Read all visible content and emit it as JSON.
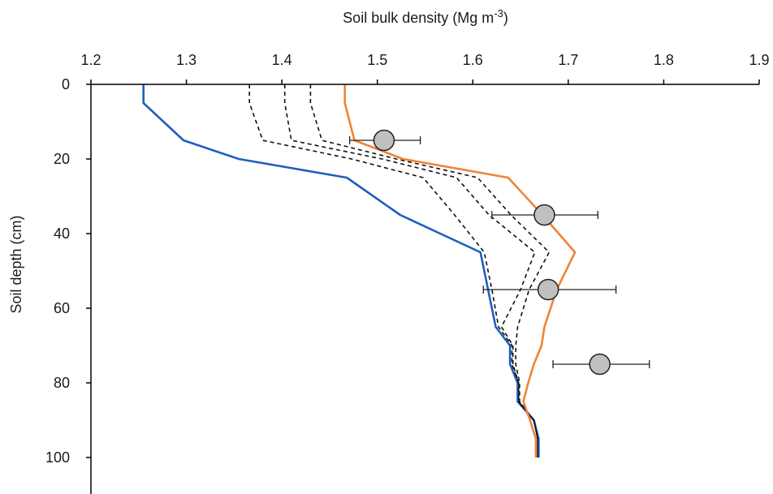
{
  "chart_data": {
    "type": "line",
    "xlabel": "Soil bulk density (Mg m",
    "xlabel_sup": "-3",
    "xlabel_end": ")",
    "ylabel": "Soil depth (cm)",
    "xlim": [
      1.2,
      1.9
    ],
    "ylim": [
      0,
      110
    ],
    "y_inverted": true,
    "x_axis_position": "top",
    "x_ticks": [
      "1.2",
      "1.3",
      "1.4",
      "1.5",
      "1.6",
      "1.7",
      "1.8",
      "1.9"
    ],
    "y_ticks": [
      "0",
      "20",
      "40",
      "60",
      "80",
      "100"
    ],
    "grid": false,
    "legend": "none",
    "series": [
      {
        "style": "solid",
        "color": "#1f5fbf",
        "points": [
          [
            1.255,
            0
          ],
          [
            1.255,
            5
          ],
          [
            1.297,
            15
          ],
          [
            1.355,
            20
          ],
          [
            1.468,
            25
          ],
          [
            1.524,
            35
          ],
          [
            1.608,
            45
          ],
          [
            1.616,
            55
          ],
          [
            1.624,
            65
          ],
          [
            1.639,
            70
          ],
          [
            1.639,
            75
          ],
          [
            1.647,
            80
          ],
          [
            1.647,
            85
          ],
          [
            1.664,
            90
          ],
          [
            1.669,
            95
          ],
          [
            1.669,
            100
          ]
        ]
      },
      {
        "style": "dashed",
        "color": "#111111",
        "points": [
          [
            1.366,
            0
          ],
          [
            1.366,
            5
          ],
          [
            1.38,
            15
          ],
          [
            1.473,
            20
          ],
          [
            1.548,
            25
          ],
          [
            1.581,
            35
          ],
          [
            1.612,
            45
          ],
          [
            1.62,
            55
          ],
          [
            1.627,
            65
          ],
          [
            1.641,
            70
          ],
          [
            1.641,
            75
          ],
          [
            1.648,
            80
          ],
          [
            1.648,
            85
          ],
          [
            1.664,
            90
          ],
          [
            1.668,
            95
          ],
          [
            1.668,
            100
          ]
        ]
      },
      {
        "style": "dashed",
        "color": "#111111",
        "points": [
          [
            1.403,
            0
          ],
          [
            1.403,
            5
          ],
          [
            1.41,
            15
          ],
          [
            1.505,
            20
          ],
          [
            1.583,
            25
          ],
          [
            1.617,
            35
          ],
          [
            1.665,
            45
          ],
          [
            1.65,
            55
          ],
          [
            1.63,
            65
          ],
          [
            1.642,
            70
          ],
          [
            1.642,
            75
          ],
          [
            1.648,
            80
          ],
          [
            1.648,
            85
          ],
          [
            1.664,
            90
          ],
          [
            1.668,
            95
          ],
          [
            1.668,
            100
          ]
        ]
      },
      {
        "style": "dashed",
        "color": "#111111",
        "points": [
          [
            1.43,
            0
          ],
          [
            1.43,
            5
          ],
          [
            1.442,
            15
          ],
          [
            1.52,
            20
          ],
          [
            1.605,
            25
          ],
          [
            1.64,
            35
          ],
          [
            1.68,
            45
          ],
          [
            1.659,
            55
          ],
          [
            1.647,
            65
          ],
          [
            1.645,
            70
          ],
          [
            1.645,
            75
          ],
          [
            1.649,
            80
          ],
          [
            1.649,
            85
          ],
          [
            1.664,
            90
          ],
          [
            1.668,
            95
          ],
          [
            1.668,
            100
          ]
        ]
      },
      {
        "style": "solid",
        "color": "#ef8435",
        "points": [
          [
            1.466,
            0
          ],
          [
            1.466,
            5
          ],
          [
            1.476,
            15
          ],
          [
            1.527,
            20
          ],
          [
            1.637,
            25
          ],
          [
            1.673,
            35
          ],
          [
            1.707,
            45
          ],
          [
            1.688,
            55
          ],
          [
            1.675,
            65
          ],
          [
            1.672,
            70
          ],
          [
            1.664,
            75
          ],
          [
            1.658,
            80
          ],
          [
            1.653,
            85
          ],
          [
            1.66,
            90
          ],
          [
            1.666,
            95
          ],
          [
            1.666,
            100
          ]
        ]
      }
    ],
    "observed": {
      "marker": "circle",
      "fill": "#c0c0c0",
      "stroke": "#222222",
      "points": [
        {
          "x": 1.507,
          "y": 15,
          "xerr_low": 1.471,
          "xerr_high": 1.545
        },
        {
          "x": 1.675,
          "y": 35,
          "xerr_low": 1.62,
          "xerr_high": 1.731
        },
        {
          "x": 1.679,
          "y": 55,
          "xerr_low": 1.611,
          "xerr_high": 1.75
        },
        {
          "x": 1.733,
          "y": 75,
          "xerr_low": 1.684,
          "xerr_high": 1.785
        }
      ]
    }
  }
}
